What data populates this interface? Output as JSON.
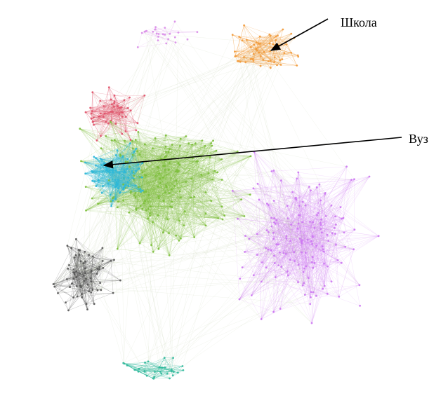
{
  "annotations": [
    {
      "label": "Школа"
    },
    {
      "label": "Вуз"
    }
  ]
}
